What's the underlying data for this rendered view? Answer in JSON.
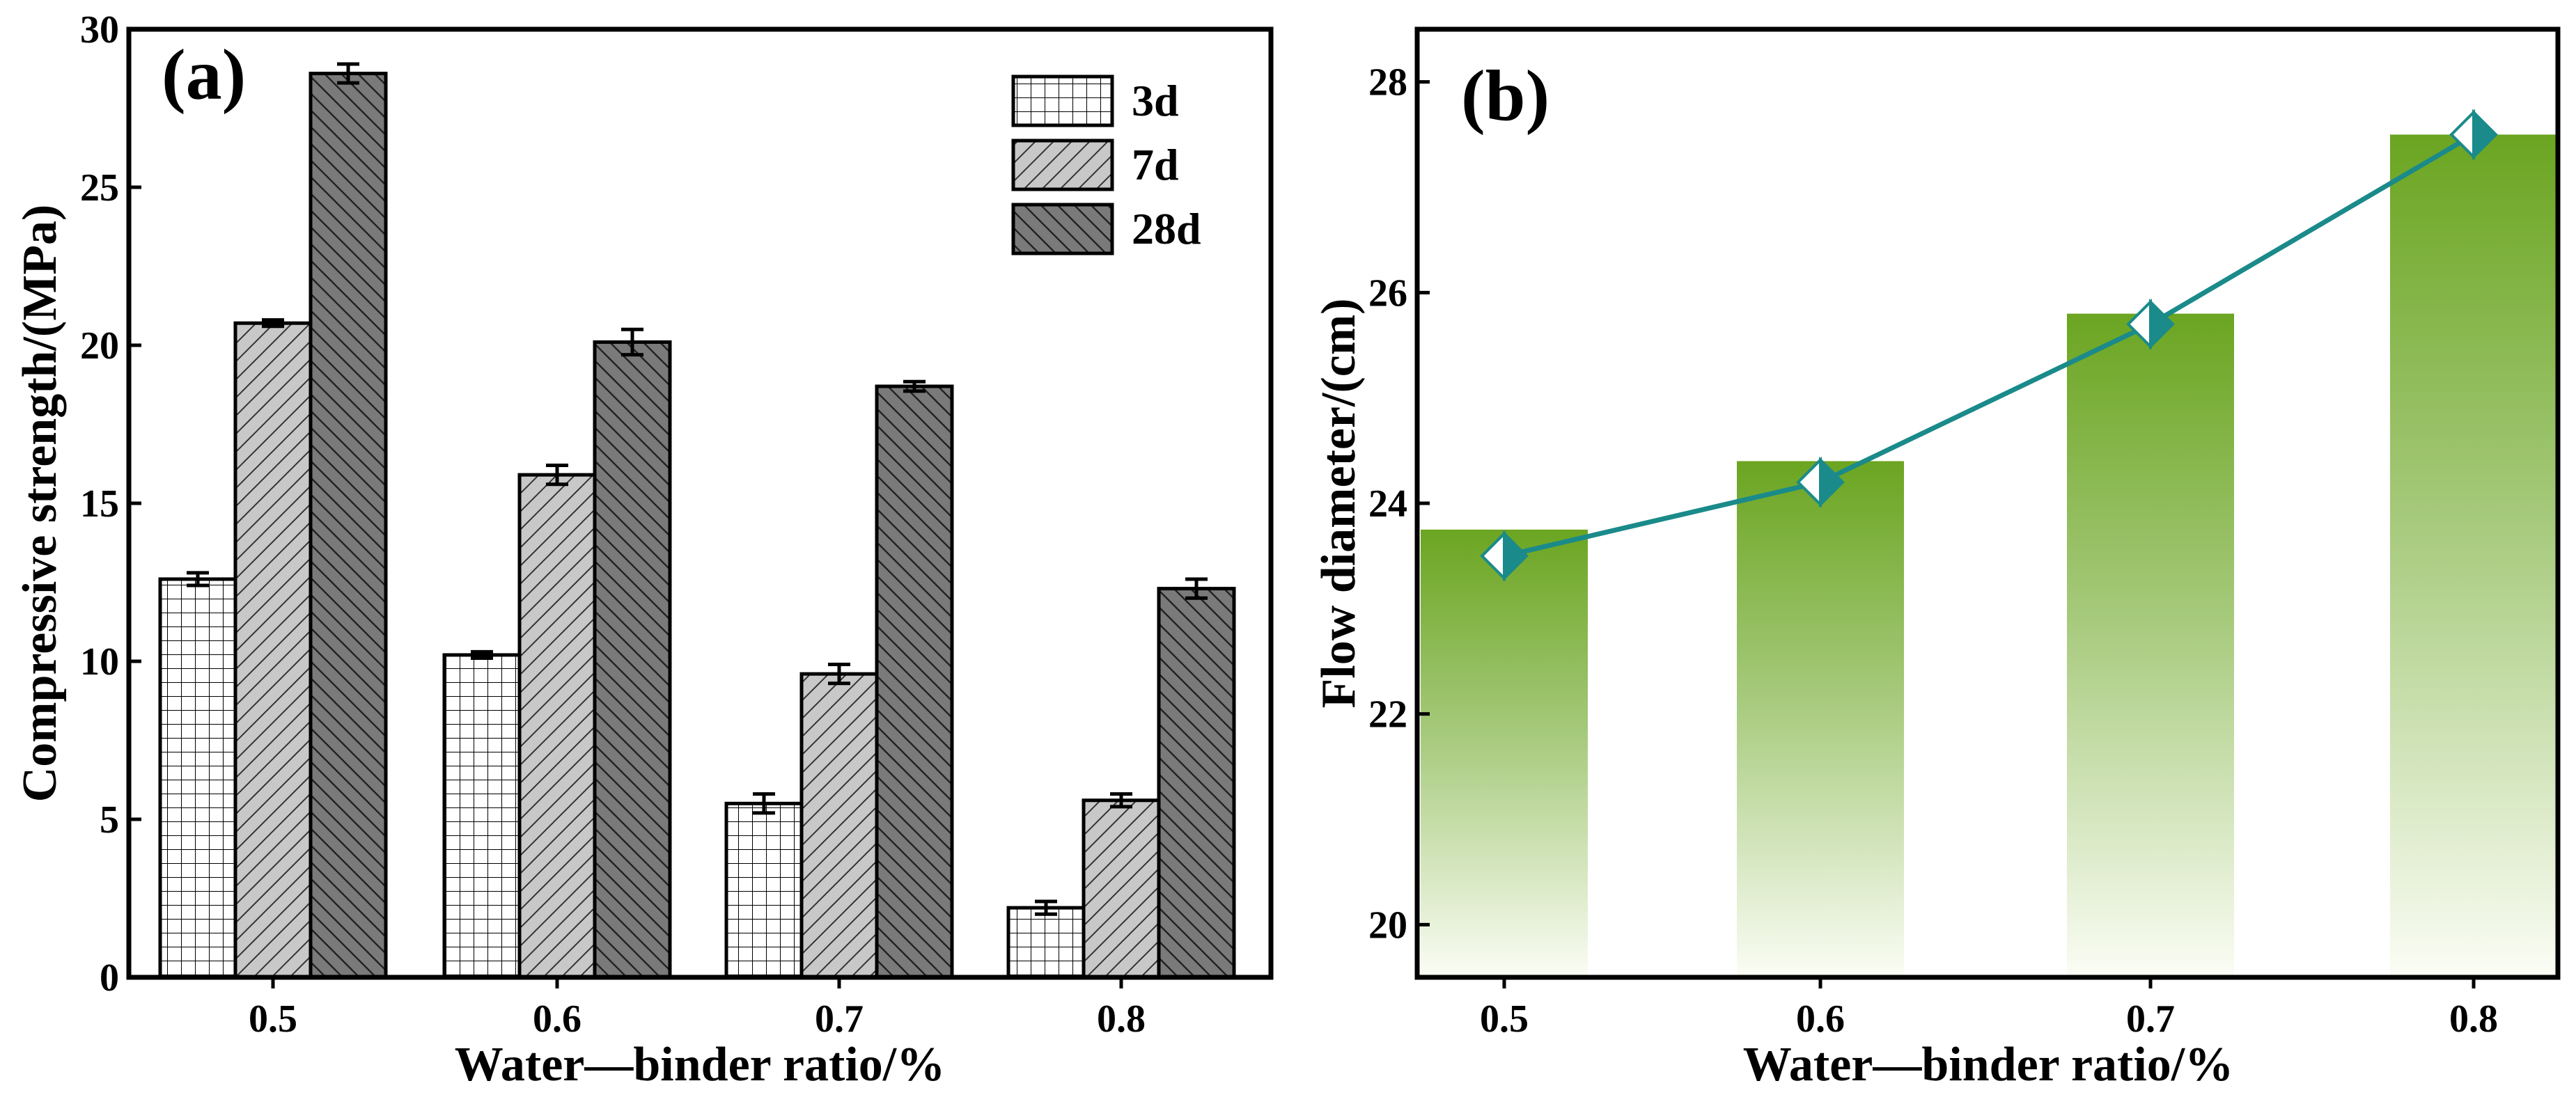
{
  "chart_data": [
    {
      "panel_label": "(a)",
      "type": "bar",
      "xlabel": "Water—binder ratio/%",
      "ylabel": "Compressive strength/(MPa)",
      "categories": [
        "0.5",
        "0.6",
        "0.7",
        "0.8"
      ],
      "ylim": [
        0,
        30
      ],
      "yticks": [
        "0",
        "5",
        "10",
        "15",
        "20",
        "25",
        "30"
      ],
      "legend_position": "top-right",
      "series": [
        {
          "name": "3d",
          "values": [
            12.6,
            10.2,
            5.5,
            2.2
          ],
          "errors": [
            0.2,
            0.1,
            0.3,
            0.2
          ],
          "color": "#ffffff",
          "pattern": "grid"
        },
        {
          "name": "7d",
          "values": [
            20.7,
            15.9,
            9.6,
            5.6
          ],
          "errors": [
            0.1,
            0.3,
            0.3,
            0.2
          ],
          "color": "#c8c8c8",
          "pattern": "forward-diagonal"
        },
        {
          "name": "28d",
          "values": [
            28.6,
            20.1,
            18.7,
            12.3
          ],
          "errors": [
            0.3,
            0.4,
            0.15,
            0.3
          ],
          "color": "#7a7a7a",
          "pattern": "back-diagonal"
        }
      ]
    },
    {
      "panel_label": "(b)",
      "type": "bar+line",
      "xlabel": "Water—binder ratio/%",
      "ylabel": "Flow diameter/(cm)",
      "categories": [
        "0.5",
        "0.6",
        "0.7",
        "0.8"
      ],
      "ylim": [
        19.5,
        28.5
      ],
      "yticks": [
        "20",
        "22",
        "24",
        "26",
        "28"
      ],
      "bars": {
        "values": [
          23.75,
          24.4,
          25.8,
          27.5
        ],
        "color": "#6ba521"
      },
      "line": {
        "values": [
          23.5,
          24.2,
          25.7,
          27.5
        ],
        "color": "#1a8a8a",
        "marker": "diamond"
      }
    }
  ]
}
